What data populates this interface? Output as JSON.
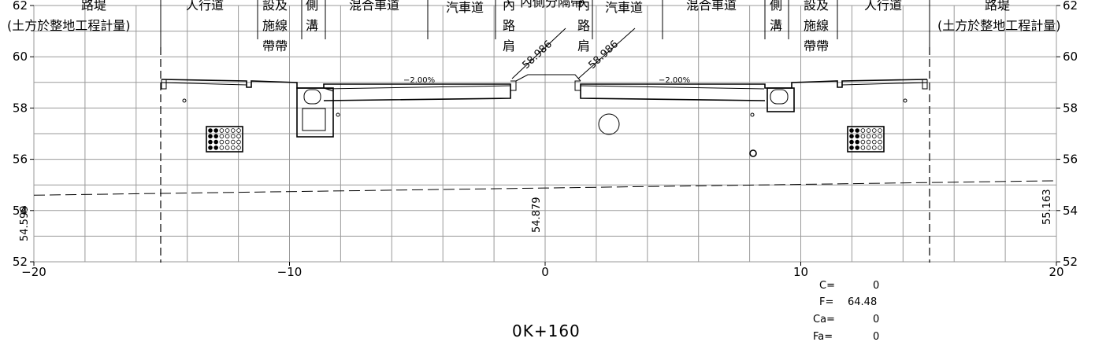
{
  "chart_data": {
    "type": "diagram",
    "x_axis": {
      "ticks": [
        -20,
        -10,
        0,
        10,
        20
      ],
      "tick_labels": [
        "−20",
        "−10",
        "0",
        "10",
        "20"
      ],
      "range": [
        -20,
        20
      ]
    },
    "y_axis": {
      "ticks": [
        52,
        54,
        56,
        58,
        60,
        62
      ],
      "tick_labels": [
        "52",
        "54",
        "56",
        "58",
        "60",
        "62"
      ],
      "range": [
        52,
        62
      ]
    },
    "ground_elevations": [
      {
        "x": -20,
        "value": "54.599"
      },
      {
        "x": 0,
        "value": "54.879"
      },
      {
        "x": 20,
        "value": "55.163"
      }
    ],
    "design_elevations": [
      {
        "x": -0.9,
        "value": "58.986"
      },
      {
        "x": 2.7,
        "value": "58.986"
      }
    ],
    "slopes": [
      {
        "x": -5.5,
        "value": "−2.00%"
      },
      {
        "x": 5.0,
        "value": "−2.00%"
      }
    ]
  },
  "headers": {
    "left_outer": "土方於整地工程計量",
    "left_outer_wrapped": "(土方於整地工程計量)",
    "right_outer_wrapped": "(土方於整地工程計量)",
    "top_row": {
      "left_bank": "路堤",
      "left_sidewalk": "人行道",
      "left_facility": "設施",
      "left_gutter": "側",
      "left_mixed": "混合車道",
      "left_car": "汽車道",
      "median": "內側分隔帶",
      "right_car": "汽車道",
      "right_mixed": "混合車道",
      "right_gutter": "側",
      "right_facility": "設施",
      "right_sidewalk": "人行道",
      "right_bank": "路堤"
    },
    "left_facility_lines": [
      "設及",
      "施線",
      "帶帶"
    ],
    "right_facility_lines": [
      "設及",
      "施線",
      "帶帶"
    ],
    "left_gutter_lines": [
      "側",
      "溝"
    ],
    "right_gutter_lines": [
      "側",
      "溝"
    ],
    "left_inner_lines": [
      "內",
      "路",
      "肩"
    ],
    "right_inner_lines": [
      "內",
      "路",
      "肩"
    ]
  },
  "quantities": [
    {
      "label": "C=",
      "value": "0"
    },
    {
      "label": "F=",
      "value": "64.48"
    },
    {
      "label": "Ca=",
      "value": "0"
    },
    {
      "label": "Fa=",
      "value": "0"
    }
  ],
  "station": "0K+160"
}
